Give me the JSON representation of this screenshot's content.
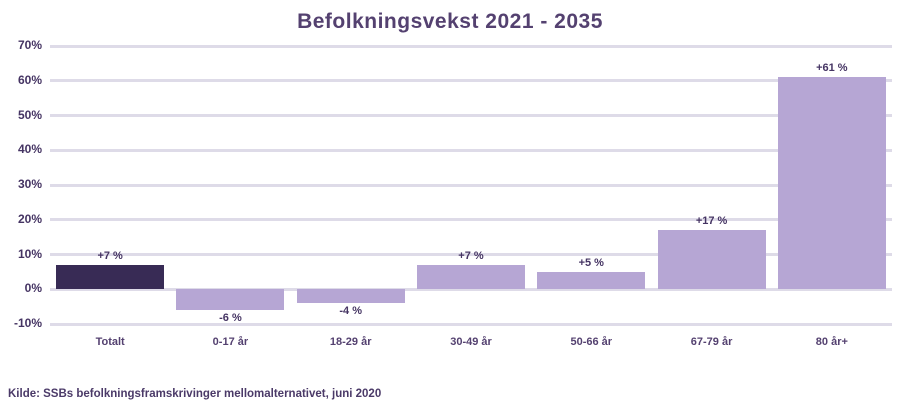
{
  "source": "Kilde: SSBs befolkningsframskrivinger mellomalternativet, juni 2020",
  "colors": {
    "title_text": "#544170",
    "axis_text": "#453463",
    "gridline": "#dedbe8",
    "bar_dark": "#382b55",
    "bar_light": "#b6a6d4",
    "source_text": "#4b3a68",
    "background": "#ffffff"
  },
  "chart_data": {
    "type": "bar",
    "title": "Befolkningsvekst 2021 - 2035",
    "categories": [
      "Totalt",
      "0-17 år",
      "18-29 år",
      "30-49 år",
      "50-66 år",
      "67-79 år",
      "80 år+"
    ],
    "values": [
      7,
      -6,
      -4,
      7,
      5,
      17,
      61
    ],
    "value_labels": [
      "+7 %",
      "-6 %",
      "-4 %",
      "+7 %",
      "+5 %",
      "+17 %",
      "+61 %"
    ],
    "bar_colors": [
      "#382b55",
      "#b6a6d4",
      "#b6a6d4",
      "#b6a6d4",
      "#b6a6d4",
      "#b6a6d4",
      "#b6a6d4"
    ],
    "xlabel": "",
    "ylabel": "",
    "ylim": [
      -10,
      70
    ],
    "ytick_labels": [
      "70%",
      "60%",
      "50%",
      "40%",
      "30%",
      "20%",
      "10%",
      "0%",
      "-10%"
    ],
    "grid": true,
    "legend": "none"
  }
}
